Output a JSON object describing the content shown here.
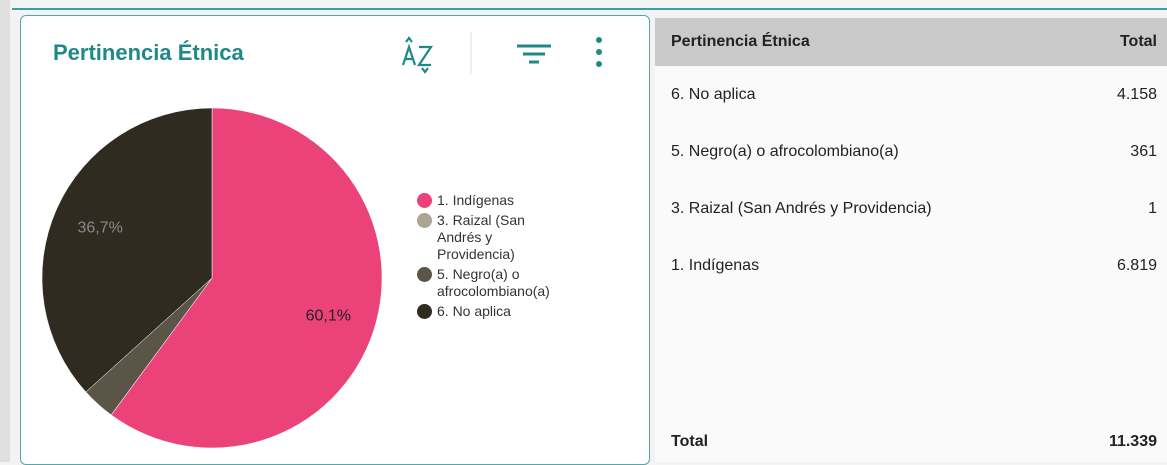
{
  "chart_data": {
    "type": "pie",
    "title": "Pertinencia Étnica",
    "categories": [
      "1. Indígenas",
      "3. Raizal (San Andrés y Providencia)",
      "5. Negro(a) o afrocolombiano(a)",
      "6. No aplica"
    ],
    "values": [
      60.1,
      0.01,
      3.2,
      36.7
    ],
    "value_labels": [
      "60,1%",
      null,
      null,
      "36,7%"
    ],
    "colors": [
      "#ec427a",
      "#aba592",
      "#5b5547",
      "#2f2b20"
    ]
  },
  "table": {
    "header": [
      "Pertinencia Étnica",
      "Total"
    ],
    "rows": [
      [
        "6. No aplica",
        "4.158"
      ],
      [
        "5. Negro(a) o afrocolombiano(a)",
        "361"
      ],
      [
        "3. Raizal (San Andrés y Providencia)",
        "1"
      ],
      [
        "1. Indígenas",
        "6.819"
      ]
    ],
    "total": [
      "Total",
      "11.339"
    ]
  }
}
